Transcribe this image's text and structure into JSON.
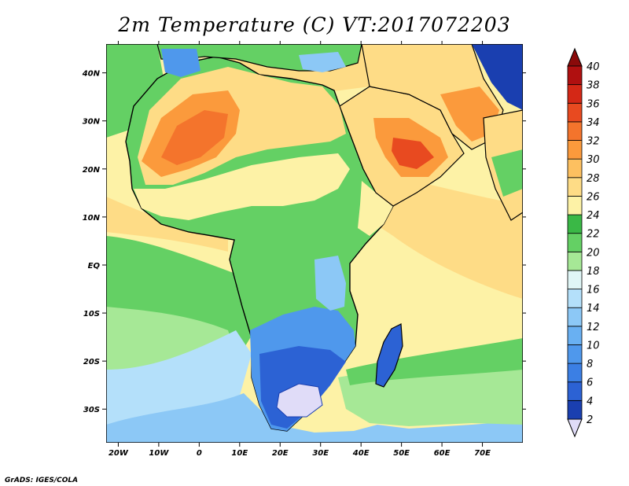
{
  "title": "2m Temperature (C) VT:2017072203",
  "credit": "GrADS: IGES/COLA",
  "map": {
    "lon_range": [
      -23,
      80
    ],
    "lat_range": [
      -37,
      46
    ],
    "lon_ticks": [
      {
        "value": -20,
        "label": "20W"
      },
      {
        "value": -10,
        "label": "10W"
      },
      {
        "value": 0,
        "label": "0"
      },
      {
        "value": 10,
        "label": "10E"
      },
      {
        "value": 20,
        "label": "20E"
      },
      {
        "value": 30,
        "label": "30E"
      },
      {
        "value": 40,
        "label": "40E"
      },
      {
        "value": 50,
        "label": "50E"
      },
      {
        "value": 60,
        "label": "60E"
      },
      {
        "value": 70,
        "label": "70E"
      }
    ],
    "lat_ticks": [
      {
        "value": 40,
        "label": "40N"
      },
      {
        "value": 30,
        "label": "30N"
      },
      {
        "value": 20,
        "label": "20N"
      },
      {
        "value": 10,
        "label": "10N"
      },
      {
        "value": 0,
        "label": "EQ"
      },
      {
        "value": -10,
        "label": "10S"
      },
      {
        "value": -20,
        "label": "20S"
      },
      {
        "value": -30,
        "label": "30S"
      }
    ]
  },
  "colorbar": {
    "levels": [
      {
        "label": "2",
        "color": "#0c1d78"
      },
      {
        "label": "4",
        "color": "#1a3fb0"
      },
      {
        "label": "6",
        "color": "#2c62d4"
      },
      {
        "label": "8",
        "color": "#3b7fe4"
      },
      {
        "label": "10",
        "color": "#4f98ec"
      },
      {
        "label": "12",
        "color": "#69b0f2"
      },
      {
        "label": "14",
        "color": "#8cc8f6"
      },
      {
        "label": "16",
        "color": "#b4e0fa"
      },
      {
        "label": "18",
        "color": "#e0f6f6"
      },
      {
        "label": "20",
        "color": "#a6e896"
      },
      {
        "label": "22",
        "color": "#64d064"
      },
      {
        "label": "24",
        "color": "#3ab846"
      },
      {
        "label": "26",
        "color": "#fdf2a6"
      },
      {
        "label": "28",
        "color": "#fedc86"
      },
      {
        "label": "30",
        "color": "#fdc060"
      },
      {
        "label": "32",
        "color": "#fb9a3c"
      },
      {
        "label": "34",
        "color": "#f4742c"
      },
      {
        "label": "36",
        "color": "#e84a20"
      },
      {
        "label": "38",
        "color": "#d42816"
      },
      {
        "label": "40",
        "color": "#b01010"
      }
    ],
    "below_color": "#e0dcf8",
    "above_color": "#8a0a0a"
  },
  "colors": {
    "ocean_warm": "#fdd27a",
    "ocean_cool_green": "#64d064",
    "ocean_cold": "#b4e0fa",
    "land_hot": "#f4742c",
    "land_cold": "#2c62d4",
    "coast": "#000000"
  }
}
